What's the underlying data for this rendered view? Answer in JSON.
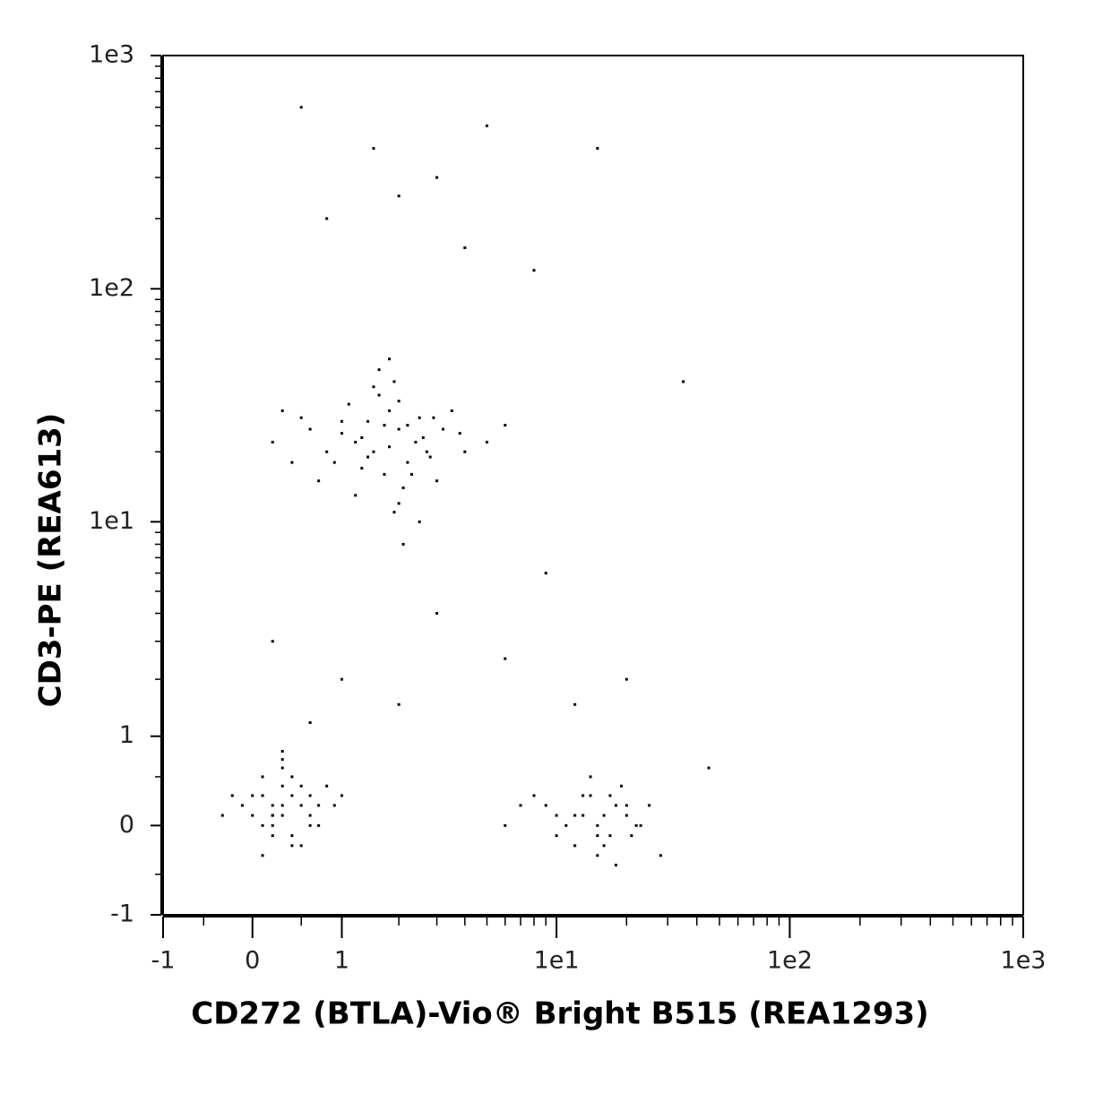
{
  "chart_data": {
    "type": "scatter",
    "xlabel": "CD272 (BTLA)-Vio® Bright B515 (REA1293)",
    "ylabel": "CD3-PE (REA613)",
    "xscale": "asinh",
    "yscale": "asinh",
    "xlim": [
      -1,
      1000
    ],
    "ylim": [
      -1,
      1000
    ],
    "xticks": [
      -1,
      0,
      1,
      {
        "value": 10,
        "label": "1e1"
      },
      {
        "value": 100,
        "label": "1e2"
      },
      {
        "value": 1000,
        "label": "1e3"
      }
    ],
    "yticks": [
      -1,
      0,
      1,
      {
        "value": 10,
        "label": "1e1"
      },
      {
        "value": 100,
        "label": "1e2"
      },
      {
        "value": 1000,
        "label": "1e3"
      }
    ],
    "xminorticks": [
      -0.5,
      0.5,
      2,
      3,
      4,
      5,
      6,
      7,
      8,
      9,
      20,
      30,
      40,
      50,
      60,
      70,
      80,
      90,
      200,
      300,
      400,
      500,
      600,
      700,
      800,
      900
    ],
    "yminorticks": [
      -0.5,
      0.5,
      2,
      3,
      4,
      5,
      6,
      7,
      8,
      9,
      20,
      30,
      40,
      50,
      60,
      70,
      80,
      90,
      200,
      300,
      400,
      500,
      600,
      700,
      800,
      900
    ],
    "color": "#000000",
    "x": [
      1.5,
      2,
      1.8,
      2.2,
      1.2,
      2.5,
      3,
      1,
      0.8,
      1.6,
      2.1,
      1.9,
      2.4,
      1.3,
      1.7,
      2.8,
      3.5,
      0.6,
      0.9,
      1.1,
      2.6,
      2,
      1.4,
      1.8,
      2.3,
      3.2,
      4,
      0.5,
      0.7,
      1.5,
      2.2,
      1.9,
      1.6,
      2.7,
      1.2,
      3.8,
      5,
      0.3,
      0.4,
      1,
      2,
      1.7,
      2.9,
      1.4,
      2.5,
      6,
      0.2,
      1.8,
      2.1,
      1.3,
      0.3,
      0.2,
      0.4,
      0.1,
      0.5,
      0.3,
      0,
      0.6,
      0.2,
      0.4,
      -0.1,
      0.7,
      0.3,
      0.1,
      0.5,
      0.2,
      0.8,
      0.3,
      -0.2,
      0.4,
      0.6,
      0.1,
      0.3,
      0.9,
      0.2,
      0,
      0.5,
      0.4,
      -0.3,
      0.7,
      0.3,
      0.1,
      1,
      0.2,
      0.6,
      12,
      15,
      18,
      10,
      20,
      14,
      16,
      22,
      9,
      13,
      17,
      25,
      11,
      19,
      8,
      15,
      21,
      14,
      12,
      16,
      7,
      23,
      18,
      13,
      28,
      10,
      20,
      15,
      6,
      17,
      0.5,
      1.5,
      3,
      5,
      0.8,
      2,
      4,
      8,
      0.2,
      1,
      3,
      6,
      12,
      20,
      0.6,
      2,
      9,
      15,
      35,
      45
    ],
    "y": [
      20,
      25,
      30,
      18,
      22,
      28,
      15,
      24,
      20,
      35,
      14,
      40,
      22,
      17,
      26,
      19,
      30,
      25,
      18,
      32,
      23,
      12,
      27,
      21,
      16,
      25,
      20,
      28,
      15,
      38,
      26,
      11,
      45,
      20,
      13,
      24,
      22,
      30,
      18,
      27,
      33,
      16,
      28,
      19,
      10,
      26,
      22,
      50,
      8,
      23,
      0.2,
      0.1,
      0.3,
      0,
      0.2,
      0.4,
      0.1,
      0.3,
      -0.1,
      0.5,
      0.2,
      0,
      0.6,
      0.3,
      -0.2,
      0.2,
      0.4,
      0.1,
      0.3,
      -0.1,
      0.1,
      0.5,
      0.7,
      0.2,
      0,
      0.3,
      0.4,
      -0.2,
      0.1,
      0.2,
      0.8,
      -0.3,
      0.3,
      0.1,
      0,
      0.1,
      0,
      0.2,
      -0.1,
      0.1,
      0.3,
      -0.2,
      0,
      0.2,
      0.1,
      -0.1,
      0.2,
      0,
      0.4,
      0.3,
      -0.3,
      -0.1,
      0.5,
      -0.2,
      0.1,
      0.2,
      0,
      -0.4,
      0.3,
      -0.3,
      0.1,
      0.2,
      -0.1,
      0,
      0.3,
      600,
      400,
      300,
      500,
      200,
      250,
      150,
      120,
      3,
      2,
      4,
      2.5,
      1.5,
      2,
      1.2,
      1.5,
      6,
      400,
      40,
      0.6
    ]
  }
}
